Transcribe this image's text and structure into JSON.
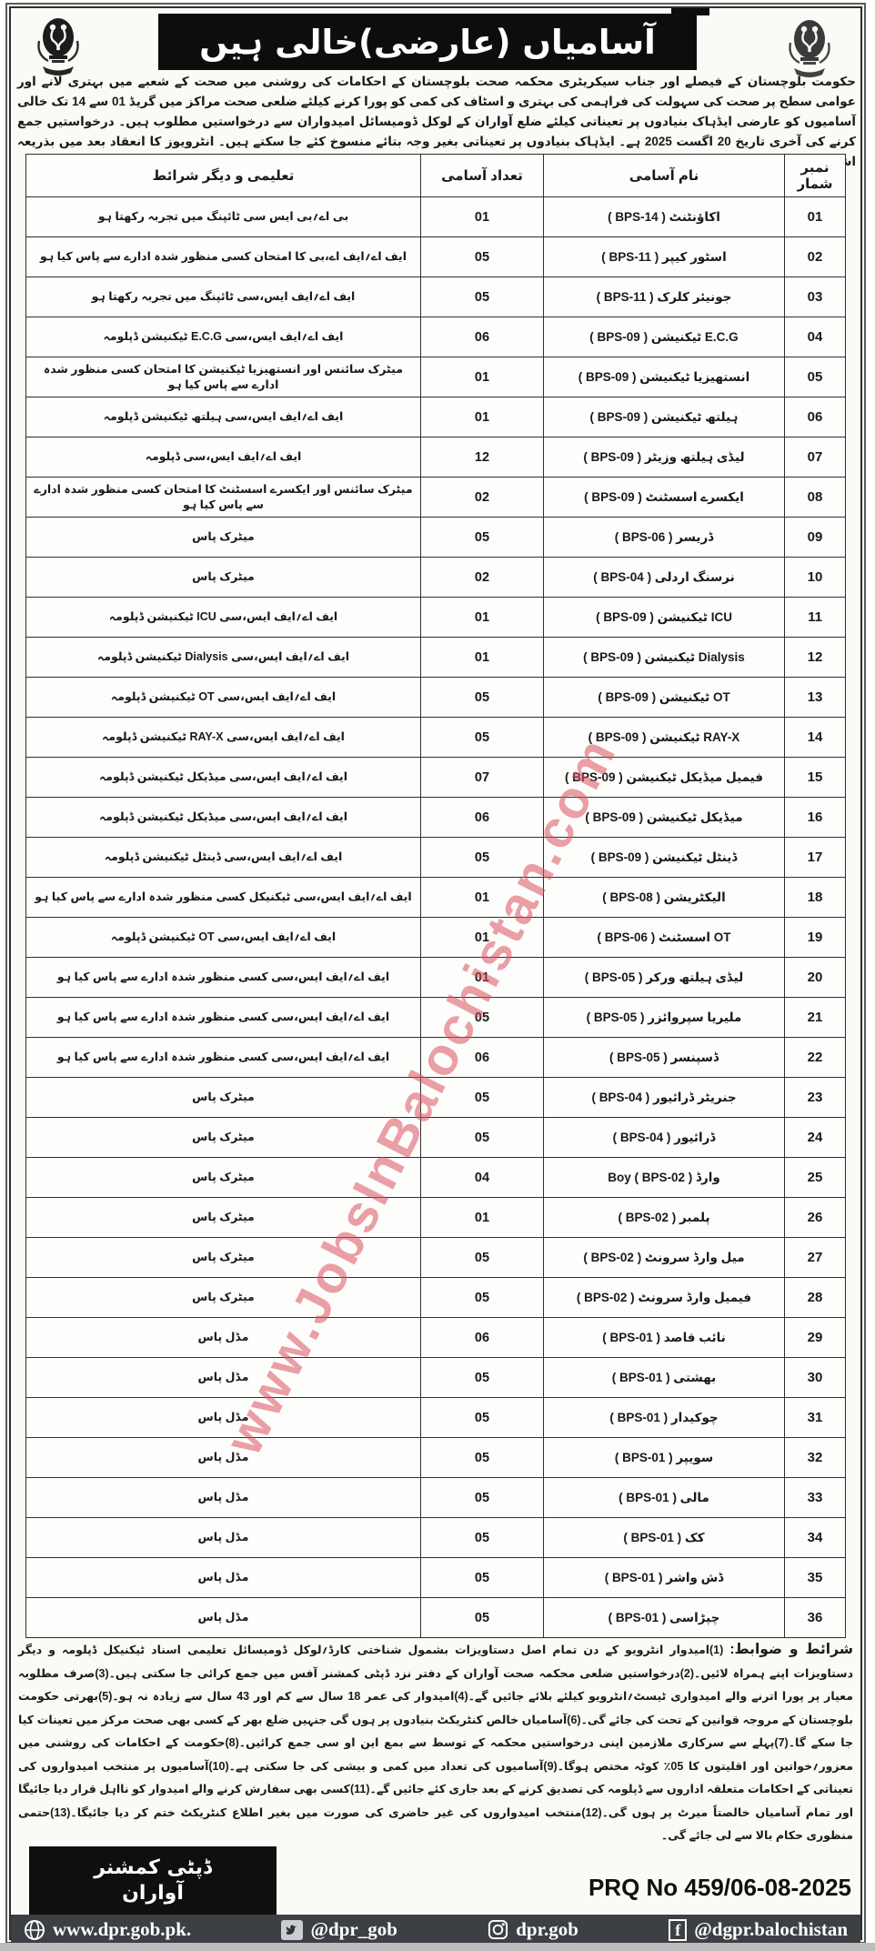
{
  "colors": {
    "banner_bg": "#0d0d0d",
    "footer_bar_bg": "#3c4044",
    "watermark_color": "#d9525e"
  },
  "header": {
    "title": "آسامیاں (عارضی)خالی ہیں",
    "left_logo": "balochistan-government-emblem",
    "right_logo": "balochistan-government-emblem"
  },
  "intro": {
    "text": "حکومت بلوچستان کے فیصلے اور جناب سیکریٹری محکمہ صحت بلوچستان کے احکامات کی روشنی میں صحت کے شعبے میں بہتری لانے اور عوامی سطح پر صحت کی سہولت کی فراہمی کی بہتری و اسٹاف کی کمی کو پورا کرنے کیلئے ضلعی صحت مراکز میں گریڈ 01 سے 14 تک خالی آسامیوں کو عارضی ایڈہاک بنیادوں پر تعیناتی کیلئے ضلع آواران کے لوکل ڈومیسائل امیدواران سے درخواستیں مطلوب ہیں۔ درخواستیں جمع کرنے کی آخری تاریخ 20 اگست 2025 ہے۔ ایڈہاک بنیادوں پر تعیناتی بغیر وجہ بتائے منسوخ کئے جا سکتے ہیں۔ انٹرویوز کا انعقاد بعد میں بذریعہ اشتہار؍ڈپٹی کمشنر آواران آفس سے ہوگا۔"
  },
  "table": {
    "headers": {
      "serial": "نمبر شمار",
      "name": "نام آسامی",
      "count": "تعداد آسامی",
      "qualification": "تعلیمی و دیگر شرائط"
    },
    "rows": [
      {
        "serial": "01",
        "name": "اکاؤنٹنٹ ( BPS-14 )",
        "count": "01",
        "qualification": "بی اے؍بی ایس سی ٹائپنگ میں تجربہ رکھتا ہو"
      },
      {
        "serial": "02",
        "name": "اسٹور کیپر ( BPS-11 )",
        "count": "05",
        "qualification": "ایف اے؍ایف اے،بی کا امتحان کسی منظور شدہ ادارے سے پاس کیا ہو"
      },
      {
        "serial": "03",
        "name": "جونیئر کلرک ( BPS-11 )",
        "count": "05",
        "qualification": "ایف اے؍ایف ایس،سی ٹائپنگ میں تجربہ رکھتا ہو"
      },
      {
        "serial": "04",
        "name": "E.C.G ٹیکنیشن ( BPS-09 )",
        "count": "06",
        "qualification": "ایف اے؍ایف ایس،سی E.C.G ٹیکنیشن ڈپلومہ"
      },
      {
        "serial": "05",
        "name": "انستھیزیا ٹیکنیشن ( BPS-09 )",
        "count": "01",
        "qualification": "میٹرک سائنس اور انستھیزیا ٹیکنیشن کا امتحان کسی منظور شدہ ادارے سے پاس کیا ہو"
      },
      {
        "serial": "06",
        "name": "ہیلتھ ٹیکنیشن ( BPS-09 )",
        "count": "01",
        "qualification": "ایف اے؍ایف ایس،سی ہیلتھ ٹیکنیشن ڈپلومہ"
      },
      {
        "serial": "07",
        "name": "لیڈی ہیلتھ وزیٹر ( BPS-09 )",
        "count": "12",
        "qualification": "ایف اے؍ایف ایس،سی ڈپلومہ"
      },
      {
        "serial": "08",
        "name": "ایکسرے اسسٹنٹ ( BPS-09 )",
        "count": "02",
        "qualification": "میٹرک سائنس اور ایکسرے اسسٹنٹ کا امتحان کسی منظور شدہ ادارے سے پاس کیا ہو"
      },
      {
        "serial": "09",
        "name": "ڈریسر ( BPS-06 )",
        "count": "05",
        "qualification": "میٹرک پاس"
      },
      {
        "serial": "10",
        "name": "نرسنگ اردلی ( BPS-04 )",
        "count": "02",
        "qualification": "میٹرک پاس"
      },
      {
        "serial": "11",
        "name": "ICU ٹیکنیشن ( BPS-09 )",
        "count": "01",
        "qualification": "ایف اے؍ایف ایس،سی ICU ٹیکنیشن ڈپلومہ"
      },
      {
        "serial": "12",
        "name": "Dialysis ٹیکنیشن ( BPS-09 )",
        "count": "01",
        "qualification": "ایف اے؍ایف ایس،سی Dialysis ٹیکنیشن ڈپلومہ"
      },
      {
        "serial": "13",
        "name": "OT ٹیکنیشن ( BPS-09 )",
        "count": "05",
        "qualification": "ایف اے؍ایف ایس،سی OT ٹیکنیشن ڈپلومہ"
      },
      {
        "serial": "14",
        "name": "RAY-X ٹیکنیشن ( BPS-09 )",
        "count": "05",
        "qualification": "ایف اے؍ایف ایس،سی RAY-X ٹیکنیشن ڈپلومہ"
      },
      {
        "serial": "15",
        "name": "فیمیل میڈیکل ٹیکنیشن ( BPS-09 )",
        "count": "07",
        "qualification": "ایف اے؍ایف ایس،سی میڈیکل ٹیکنیشن ڈپلومہ"
      },
      {
        "serial": "16",
        "name": "میڈیکل ٹیکنیشن ( BPS-09 )",
        "count": "06",
        "qualification": "ایف اے؍ایف ایس،سی میڈیکل ٹیکنیشن ڈپلومہ"
      },
      {
        "serial": "17",
        "name": "ڈینٹل ٹیکنیشن ( BPS-09 )",
        "count": "05",
        "qualification": "ایف اے؍ایف ایس،سی ڈینٹل ٹیکنیشن ڈپلومہ"
      },
      {
        "serial": "18",
        "name": "الیکٹریشن ( BPS-08 )",
        "count": "01",
        "qualification": "ایف اے؍ایف ایس،سی ٹیکنیکل کسی منظور شدہ ادارے سے پاس کیا ہو"
      },
      {
        "serial": "19",
        "name": "OT اسسٹنٹ ( BPS-06 )",
        "count": "01",
        "qualification": "ایف اے؍ایف ایس،سی OT ٹیکنیشن ڈپلومہ"
      },
      {
        "serial": "20",
        "name": "لیڈی ہیلتھ ورکر ( BPS-05 )",
        "count": "01",
        "qualification": "ایف اے؍ایف ایس،سی کسی منظور شدہ ادارے سے پاس کیا ہو"
      },
      {
        "serial": "21",
        "name": "ملیریا سپروائزر ( BPS-05 )",
        "count": "05",
        "qualification": "ایف اے؍ایف ایس،سی کسی منظور شدہ ادارے سے پاس کیا ہو"
      },
      {
        "serial": "22",
        "name": "ڈسپنسر ( BPS-05 )",
        "count": "06",
        "qualification": "ایف اے؍ایف ایس،سی کسی منظور شدہ ادارے سے پاس کیا ہو"
      },
      {
        "serial": "23",
        "name": "جنریٹر ڈرائیور ( BPS-04 )",
        "count": "05",
        "qualification": "میٹرک پاس"
      },
      {
        "serial": "24",
        "name": "ڈرائیور ( BPS-04 )",
        "count": "05",
        "qualification": "میٹرک پاس"
      },
      {
        "serial": "25",
        "name": "وارڈ Boy ( BPS-02 )",
        "count": "04",
        "qualification": "میٹرک پاس"
      },
      {
        "serial": "26",
        "name": "پلمبر ( BPS-02 )",
        "count": "01",
        "qualification": "میٹرک پاس"
      },
      {
        "serial": "27",
        "name": "میل وارڈ سرونٹ ( BPS-02 )",
        "count": "05",
        "qualification": "میٹرک پاس"
      },
      {
        "serial": "28",
        "name": "فیمیل وارڈ سرونٹ ( BPS-02 )",
        "count": "05",
        "qualification": "میٹرک پاس"
      },
      {
        "serial": "29",
        "name": "نائب قاصد ( BPS-01 )",
        "count": "06",
        "qualification": "مڈل پاس"
      },
      {
        "serial": "30",
        "name": "بھشتی ( BPS-01 )",
        "count": "05",
        "qualification": "مڈل پاس"
      },
      {
        "serial": "31",
        "name": "چوکیدار ( BPS-01 )",
        "count": "05",
        "qualification": "مڈل پاس"
      },
      {
        "serial": "32",
        "name": "سویپر ( BPS-01 )",
        "count": "05",
        "qualification": "مڈل پاس"
      },
      {
        "serial": "33",
        "name": "مالی ( BPS-01 )",
        "count": "05",
        "qualification": "مڈل پاس"
      },
      {
        "serial": "34",
        "name": "کک ( BPS-01 )",
        "count": "05",
        "qualification": "مڈل پاس"
      },
      {
        "serial": "35",
        "name": "ڈش واشر ( BPS-01 )",
        "count": "05",
        "qualification": "مڈل پاس"
      },
      {
        "serial": "36",
        "name": "چپڑاسی ( BPS-01 )",
        "count": "05",
        "qualification": "مڈل پاس"
      }
    ]
  },
  "terms": {
    "heading": "شرائط و ضوابط:",
    "text": "(1)امیدوار انٹرویو کے دن تمام اصل دستاویزات بشمول شناختی کارڈ؍لوکل ڈومیسائل تعلیمی اسناد ٹیکنیکل ڈپلومہ و دیگر دستاویزات اپنے ہمراہ لائیں۔(2)درخواستیں ضلعی محکمہ صحت آواران کے دفتر نزد ڈپٹی کمشنر آفس میں جمع کرائی جا سکتی ہیں۔(3)صرف مطلوبہ معیار پر پورا اترنے والے امیدواری ٹیسٹ؍انٹرویو کیلئے بلائے جائیں گے۔(4)امیدوار کی عمر 18 سال سے کم اور 43 سال سے زیادہ نہ ہو۔(5)بھرتی حکومت بلوچستان کے مروجہ قوانین کے تحت کی جائے گی۔(6)آسامیاں خالص کنٹریکٹ بنیادوں پر ہوں گی جنہیں ضلع بھر کے کسی بھی صحت مرکز میں تعینات کیا جا سکے گا۔(7)پہلے سے سرکاری ملازمین اپنی درخواستیں محکمہ کے توسط سے بمع این او سی جمع کرائیں۔(8)حکومت کے احکامات کی روشنی میں معزور؍خواتین اور اقلیتوں کا 05٪ کوٹہ مختص ہوگا۔(9)آسامیوں کی تعداد میں کمی و بیشی کی جا سکتی ہے۔(10)آسامیوں پر منتخب امیدواروں کی تعیناتی کے احکامات متعلقہ اداروں سے ڈپلومہ کی تصدیق کرنے کے بعد جاری کئے جائیں گے۔(11)کسی بھی سفارش کرنے والے امیدوار کو نااہل قرار دیا جائیگا اور تمام آسامیاں خالصتاً میرٹ پر ہوں گی۔(12)منتخب امیدواروں کی غیر حاضری کی صورت میں بغیر اطلاع کنٹریکٹ ختم کر دیا جائیگا۔(13)حتمی منظوری حکام بالا سے لی جائے گی۔"
  },
  "signature": {
    "line1": "ڈپٹی کمشنر",
    "line2": "آواران"
  },
  "prq": {
    "label": "PRQ No 459/06-08-2025"
  },
  "footer_bar": {
    "website": "www.dpr.gob.pk.",
    "twitter": "@dpr_gob",
    "instagram": "dpr.gob",
    "facebook": "@dgpr.balochistan"
  },
  "watermark": {
    "text": "www.JobsInBalochistan.com"
  }
}
